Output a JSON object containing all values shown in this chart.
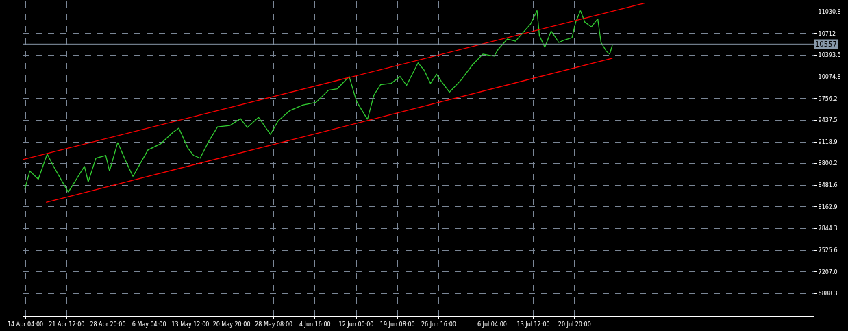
{
  "chart_data": {
    "type": "line",
    "xlim": [
      "--04-13T19:00",
      "--09-01T09:00"
    ],
    "ylim": [
      6560,
      11185
    ],
    "xticks": [
      {
        "value": "--04-14T04:00",
        "label": "14 Apr 04:00"
      },
      {
        "value": "--04-21T12:00",
        "label": "21 Apr 12:00"
      },
      {
        "value": "--04-28T20:00",
        "label": "28 Apr 20:00"
      },
      {
        "value": "--05-06T04:00",
        "label": "6 May 04:00"
      },
      {
        "value": "--05-13T12:00",
        "label": "13 May 12:00"
      },
      {
        "value": "--05-20T20:00",
        "label": "20 May 20:00"
      },
      {
        "value": "--05-28T08:00",
        "label": "28 May 08:00"
      },
      {
        "value": "--06-04T16:00",
        "label": "4 Jun 16:00"
      },
      {
        "value": "--06-12T00:00",
        "label": "12 Jun 00:00"
      },
      {
        "value": "--06-19T08:00",
        "label": "19 Jun 08:00"
      },
      {
        "value": "--06-26T16:00",
        "label": "26 Jun 16:00"
      },
      {
        "value": "--07-06T04:00",
        "label": "6 Jul 04:00"
      },
      {
        "value": "--07-13T12:00",
        "label": "13 Jul 12:00"
      },
      {
        "value": "--07-20T20:00",
        "label": "20 Jul 20:00"
      }
    ],
    "yticks": [
      6888.3,
      {
        "value": 7207,
        "label": "7207.0"
      },
      7525.6,
      7844.3,
      8162.9,
      8481.6,
      8800.2,
      9118.9,
      9437.5,
      9756.2,
      10074.8,
      10393.5,
      10712,
      11030.8
    ],
    "grid": true,
    "line_style": "solid",
    "series": [
      {
        "color": "#32cd32",
        "x": [
          "--04-14T01:00",
          "--04-14T23:00",
          "--04-16T11:00",
          "--04-18T01:00",
          "--04-19T04:00",
          "--04-21T19:00",
          "--04-24T16:00",
          "--04-25T08:00",
          "--04-26T17:00",
          "--04-28T11:00",
          "--04-29T03:00",
          "--04-30T14:00",
          "--05-02T00:00",
          "--05-03T07:00",
          "--05-05T23:00",
          "--05-08T05:00",
          "--05-10T10:00",
          "--05-11T11:00",
          "--05-13T01:00",
          "--05-14T02:00",
          "--05-15T06:00",
          "--05-16T16:00",
          "--05-18T08:00",
          "--05-20T13:00",
          "--05-22T10:00",
          "--05-23T15:00",
          "--05-25T15:00",
          "--05-27T18:00",
          "--05-29T03:00",
          "--05-31T05:00",
          "--06-02T11:00",
          "--06-04T20:00",
          "--06-07T02:00",
          "--06-08T15:00",
          "--06-10T18:00",
          "--06-12T02:00",
          "--06-14T00:00",
          "--06-15T04:00",
          "--06-16T08:00",
          "--06-18T06:00",
          "--06-19T19:00",
          "--06-20T23:00",
          "--06-23T00:00",
          "--06-24T01:00",
          "--06-25T05:00",
          "--06-26T07:00",
          "--06-27T03:00",
          "--06-28T14:00",
          "--06-30T16:00",
          "--07-02T16:00",
          "--07-04T13:00",
          "--07-06T13:00",
          "--07-07T06:00",
          "--07-08T21:00",
          "--07-10T08:00",
          "--07-11T12:00",
          "--07-13T00:00",
          "--07-14T04:00",
          "--07-14T14:00",
          "--07-15T13:00",
          "--07-16T16:00",
          "--07-18T01:00",
          "--07-18T19:00",
          "--07-20T09:00",
          "--07-21T01:00",
          "--07-21T21:00",
          "--07-22T16:00",
          "--07-23T20:00",
          "--07-24T23:00",
          "--07-25T13:00",
          "--07-26T12:00",
          "--07-27T02:00",
          "--07-27T14:00"
        ],
        "values": [
          8420,
          8690,
          8570,
          8940,
          8760,
          8380,
          8760,
          8530,
          8880,
          8920,
          8690,
          9110,
          8840,
          8610,
          9000,
          9090,
          9260,
          9320,
          9030,
          8920,
          8880,
          9110,
          9340,
          9360,
          9460,
          9330,
          9480,
          9230,
          9430,
          9580,
          9660,
          9700,
          9880,
          9900,
          10080,
          9710,
          9450,
          9810,
          9960,
          9980,
          10080,
          9950,
          10280,
          10180,
          9980,
          10110,
          10010,
          9850,
          10030,
          10250,
          10410,
          10380,
          10480,
          10630,
          10600,
          10710,
          10850,
          11050,
          10680,
          10510,
          10750,
          10580,
          10610,
          10650,
          10880,
          11050,
          10880,
          10810,
          10930,
          10580,
          10450,
          10410,
          10550
        ]
      },
      {
        "color": "#ff0000",
        "x": [
          "--04-13T19:00",
          "--08-02T09:00"
        ],
        "values": [
          8860,
          11160
        ]
      },
      {
        "color": "#ff0000",
        "x": [
          "--04-17T20:00",
          "--07-27T14:00"
        ],
        "values": [
          8230,
          10350
        ]
      }
    ],
    "ref_lines": [
      {
        "axis": "y",
        "value": 10557,
        "label": "10557",
        "color": "#8899aa"
      }
    ]
  }
}
